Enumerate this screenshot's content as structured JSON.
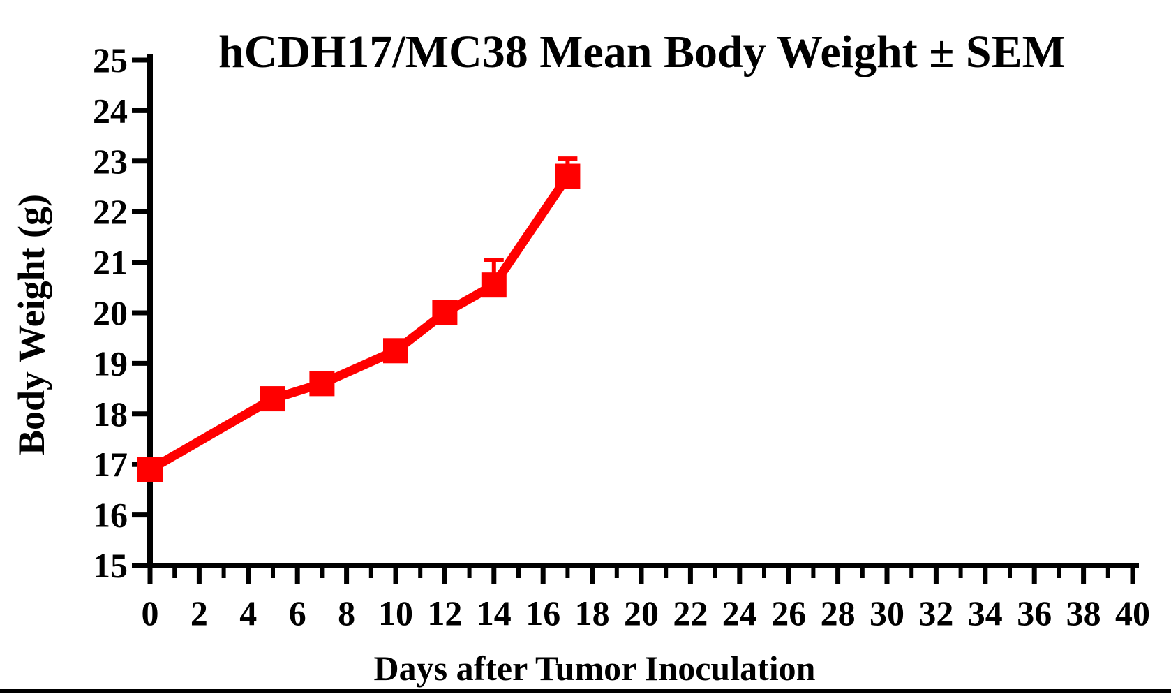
{
  "figure": {
    "title": "hCDH17/MC38 Mean Body Weight ± SEM",
    "x_axis_title": "Days after Tumor Inoculation",
    "y_axis_title": "Body Weight (g)"
  },
  "chart_data": {
    "type": "line",
    "title": "hCDH17/MC38 Mean Body Weight ± SEM",
    "xlabel": "Days after Tumor Inoculation",
    "ylabel": "Body Weight (g)",
    "xlim": [
      0,
      40
    ],
    "ylim": [
      15,
      25
    ],
    "x_major_tick_step": 2,
    "x_minor_tick_step": 1,
    "y_tick_step": 1,
    "x_tick_labels": [
      "0",
      "2",
      "4",
      "6",
      "8",
      "10",
      "12",
      "14",
      "16",
      "18",
      "20",
      "22",
      "24",
      "26",
      "28",
      "30",
      "32",
      "34",
      "36",
      "38",
      "40"
    ],
    "y_tick_labels": [
      "15",
      "16",
      "17",
      "18",
      "19",
      "20",
      "21",
      "22",
      "23",
      "24",
      "25"
    ],
    "grid": false,
    "legend_position": "none",
    "axis_color": "#000000",
    "series": [
      {
        "name": "hCDH17/MC38",
        "color": "#FF0000",
        "marker": "square",
        "x": [
          0,
          5,
          7,
          10,
          12,
          14,
          17
        ],
        "y": [
          16.9,
          18.3,
          18.6,
          19.25,
          20.0,
          20.55,
          22.7
        ],
        "sem_upper": [
          0,
          0,
          0,
          0,
          0,
          0.5,
          0.35
        ]
      }
    ]
  }
}
